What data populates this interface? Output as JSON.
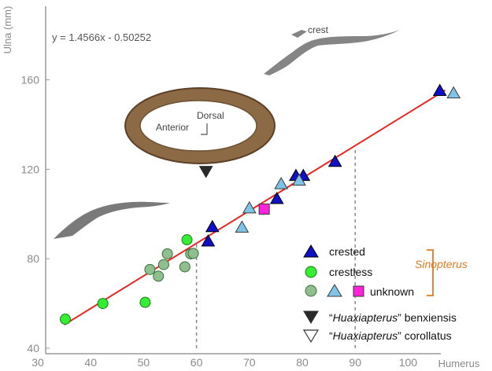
{
  "chart_data": {
    "type": "scatter",
    "title": "",
    "xlabel": "Humerus",
    "ylabel": "Ulna (mm)",
    "xlim": [
      30,
      110
    ],
    "ylim": [
      40,
      170
    ],
    "x_ticks": [
      "30",
      "40",
      "50",
      "60",
      "70",
      "80",
      "90",
      "100"
    ],
    "y_ticks": [
      "40",
      "80",
      "120",
      "160"
    ],
    "grid": false,
    "legend_position": "bottom-right",
    "equation": "y = 1.4566x - 0.50252",
    "regression": {
      "slope": 1.4566,
      "intercept": -0.50252,
      "x_range": [
        35,
        107
      ],
      "color": "#e8251f"
    },
    "reference_lines": [
      {
        "x": 60,
        "y_from": 40,
        "y_to": 87
      },
      {
        "x": 90,
        "y_from": 40,
        "y_to": 130
      }
    ],
    "group_label": "Sinopterus",
    "series": [
      {
        "name": "crested",
        "marker": "triangle-up",
        "fill": "#1010c8",
        "stroke": "#000000",
        "x": [
          62.2,
          63.0,
          75.2,
          78.8,
          80.2,
          86.2,
          106.0
        ],
        "y": [
          87.8,
          94.2,
          106.8,
          117.1,
          117.1,
          123.4,
          155.1
        ]
      },
      {
        "name": "crestless",
        "marker": "circle",
        "fill": "#33ee33",
        "stroke": "#1a7a1a",
        "x": [
          35.2,
          42.3,
          50.3,
          58.2
        ],
        "y": [
          53.0,
          60.0,
          60.5,
          88.5
        ]
      },
      {
        "name": "",
        "marker": "circle",
        "fill": "#8fbf8f",
        "stroke": "#3c6e3c",
        "x": [
          51.2,
          52.8,
          53.8,
          54.5,
          57.8,
          58.9,
          59.4
        ],
        "y": [
          75.2,
          72.2,
          77.4,
          82.2,
          76.4,
          82.2,
          82.4
        ]
      },
      {
        "name": "",
        "marker": "triangle-up",
        "fill": "#7ec4e8",
        "stroke": "#3a3a3a",
        "x": [
          68.6,
          70.0,
          76.0,
          79.4,
          108.6
        ],
        "y": [
          94.0,
          102.6,
          113.4,
          115.0,
          154.0
        ]
      },
      {
        "name": "unknown",
        "marker": "square",
        "fill": "#ff22dd",
        "stroke": "#333333",
        "x": [
          72.8
        ],
        "y": [
          102.2
        ]
      },
      {
        "name": "“Huaxiapterus” benxiensis",
        "marker": "triangle-down",
        "fill": "#2a2a2a",
        "stroke": "#2a2a2a",
        "x": [
          61.8
        ],
        "y": [
          119.2
        ]
      },
      {
        "name": "“Huaxiapterus” corollatus",
        "marker": "triangle-down",
        "fill": "#ffffff",
        "stroke": "#333333",
        "x": [],
        "y": []
      }
    ],
    "annotations": {
      "crest_label": "crest",
      "dorsal_label": "Dorsal",
      "anterior_label": "Anterior"
    }
  },
  "legend": {
    "crested": "crested",
    "crestless": "crestless",
    "unknown": "unknown",
    "benx_quote_open": "“",
    "benx_name": "Huaxiapterus",
    "benx_rest": "” benxiensis",
    "coro_quote_open": "“",
    "coro_name": "Huaxiapterus",
    "coro_rest": "” corollatus"
  }
}
